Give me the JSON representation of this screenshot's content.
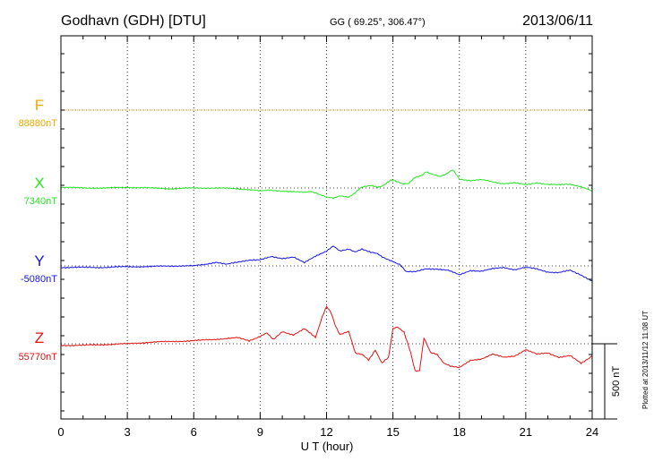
{
  "header": {
    "station": "Godhavn (GDH)  [DTU]",
    "coords": "GG ( 69.25°, 306.47°)",
    "date": "2013/06/11"
  },
  "footer": {
    "plotted": "Plotted at 2013/11/12 11:08 UT",
    "scale_label": "500 nT"
  },
  "chart_data": {
    "type": "line",
    "title": "Godhavn (GDH)  [DTU]",
    "xlabel": "U T (hour)",
    "xlim": [
      0,
      24
    ],
    "xticks": [
      0,
      3,
      6,
      9,
      12,
      15,
      18,
      21,
      24
    ],
    "grid": true,
    "scale_bar_nT": 500,
    "series": [
      {
        "name": "F",
        "baseline_label": "88880nT",
        "baseline_nT": 88880,
        "color": "#f5a500",
        "x": [
          0,
          24
        ],
        "y": [
          0,
          0
        ]
      },
      {
        "name": "X",
        "baseline_label": "7340nT",
        "baseline_nT": 7340,
        "color": "#22e822",
        "x": [
          0,
          1,
          2,
          3,
          4,
          5,
          6,
          7,
          8,
          8.5,
          9,
          9.5,
          10,
          10.5,
          11,
          11.3,
          11.6,
          12,
          12.3,
          12.6,
          13,
          13.3,
          13.6,
          14,
          14.3,
          14.6,
          14.9,
          15.1,
          15.4,
          15.7,
          16,
          16.3,
          16.5,
          16.8,
          17.1,
          17.4,
          17.7,
          18,
          18.5,
          19,
          19.5,
          20,
          20.5,
          21,
          21.5,
          22,
          22.5,
          23,
          23.5,
          24
        ],
        "y": [
          5,
          0,
          0,
          5,
          0,
          -5,
          0,
          0,
          -5,
          -10,
          -20,
          -15,
          -20,
          -25,
          -30,
          -20,
          -40,
          -60,
          -70,
          -50,
          -60,
          -30,
          5,
          15,
          5,
          20,
          50,
          45,
          30,
          30,
          70,
          85,
          110,
          90,
          75,
          95,
          120,
          60,
          50,
          55,
          40,
          30,
          35,
          20,
          35,
          25,
          20,
          25,
          10,
          -20
        ]
      },
      {
        "name": "Y",
        "baseline_label": "-5080nT",
        "baseline_nT": -5080,
        "color": "#1515ee",
        "x": [
          0,
          1,
          2,
          3,
          4,
          5,
          6,
          6.5,
          7,
          7.5,
          8,
          8.5,
          9,
          9.5,
          10,
          10.5,
          11,
          11.5,
          12,
          12.3,
          12.6,
          13,
          13.3,
          13.6,
          14,
          14.3,
          14.6,
          15,
          15.3,
          15.6,
          16,
          16.5,
          17,
          17.5,
          18,
          18.5,
          19,
          19.5,
          20,
          20.5,
          21,
          21.5,
          22,
          22.5,
          23,
          23.5,
          24
        ],
        "y": [
          -10,
          -10,
          -10,
          -5,
          -5,
          0,
          0,
          10,
          25,
          10,
          25,
          40,
          40,
          60,
          50,
          60,
          20,
          65,
          100,
          130,
          100,
          110,
          95,
          110,
          90,
          80,
          55,
          30,
          10,
          -40,
          -40,
          -20,
          -20,
          -30,
          -60,
          -30,
          -35,
          -20,
          -10,
          -25,
          -10,
          -20,
          -40,
          -45,
          -30,
          -60,
          -100
        ]
      },
      {
        "name": "Z",
        "baseline_label": "55770nT",
        "baseline_nT": 55770,
        "color": "#e81010",
        "x": [
          0,
          1,
          2,
          3,
          4,
          5,
          6,
          7,
          8,
          8.5,
          9,
          9.3,
          9.6,
          10,
          10.5,
          11,
          11.5,
          11.8,
          12,
          12.2,
          12.4,
          12.6,
          13,
          13.3,
          13.6,
          13.9,
          14.2,
          14.5,
          14.8,
          15,
          15.2,
          15.5,
          15.8,
          16,
          16.2,
          16.4,
          16.7,
          17,
          17.3,
          17.6,
          18,
          18.5,
          19,
          19.5,
          20,
          20.5,
          21,
          21.5,
          22,
          22.5,
          23,
          23.5,
          24
        ],
        "y": [
          -10,
          -10,
          -5,
          0,
          10,
          15,
          20,
          30,
          40,
          20,
          50,
          70,
          30,
          80,
          60,
          100,
          40,
          180,
          250,
          210,
          120,
          60,
          80,
          -60,
          -70,
          -110,
          -40,
          -130,
          -90,
          100,
          110,
          80,
          -60,
          -180,
          -180,
          40,
          -60,
          -70,
          -130,
          -150,
          -160,
          -110,
          -100,
          -70,
          -90,
          -80,
          -40,
          -70,
          -60,
          -90,
          -80,
          -130,
          -80
        ]
      }
    ]
  }
}
